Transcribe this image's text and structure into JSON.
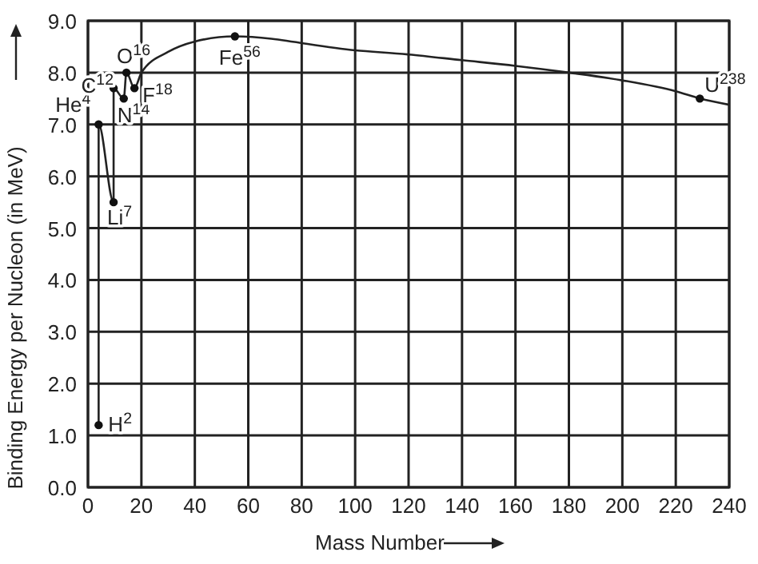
{
  "chart_data": {
    "type": "line",
    "xlabel": "Mass Number",
    "ylabel": "Binding Energy per Nucleon (in MeV)",
    "series": [
      {
        "color": "#222222",
        "marker": "none",
        "x": [
          4,
          4,
          9.6,
          9.6,
          13.4,
          14.4,
          17.4,
          20,
          30,
          40,
          55,
          100,
          120,
          140,
          160,
          180,
          200,
          220,
          229,
          240
        ],
        "values": [
          1.2,
          7.0,
          5.5,
          7.7,
          7.5,
          8.0,
          7.7,
          8.0,
          8.4,
          8.6,
          8.7,
          8.43,
          8.35,
          8.24,
          8.13,
          8.0,
          7.85,
          7.64,
          7.5,
          7.38
        ]
      },
      {
        "type": "scatter",
        "color": "#111111",
        "marker": "circle",
        "x": [
          4,
          4,
          9.6,
          9.6,
          13.4,
          14.4,
          17.4,
          55,
          229
        ],
        "values": [
          1.2,
          7.0,
          5.5,
          7.7,
          7.5,
          8.0,
          7.7,
          8.7,
          7.5
        ]
      }
    ],
    "annotations": [
      {
        "text": "H$^{2}$",
        "x": 4,
        "y": 1.2
      },
      {
        "text": "He$^{4}$",
        "x": 4,
        "y": 7.0
      },
      {
        "text": "Li$^{7}$",
        "x": 9.6,
        "y": 5.5
      },
      {
        "text": "C$^{12}$",
        "x": 9.6,
        "y": 7.7
      },
      {
        "text": "N$^{14}$",
        "x": 13.4,
        "y": 7.5
      },
      {
        "text": "O$^{16}$",
        "x": 14.4,
        "y": 8.0
      },
      {
        "text": "F$^{18}$",
        "x": 17.4,
        "y": 7.7
      },
      {
        "text": "Fe$^{56}$",
        "x": 55,
        "y": 8.7
      },
      {
        "text": "U$^{238}$",
        "x": 229,
        "y": 7.5
      }
    ],
    "xlim": [
      0,
      240
    ],
    "xticks": [
      0,
      20,
      40,
      60,
      80,
      100,
      120,
      140,
      160,
      180,
      200,
      220,
      240
    ],
    "ylim": [
      0,
      9
    ],
    "yticks": [
      {
        "value": 0,
        "label": "0.0"
      },
      {
        "value": 1,
        "label": "1.0"
      },
      {
        "value": 2,
        "label": "2.0"
      },
      {
        "value": 3,
        "label": "3.0"
      },
      {
        "value": 4,
        "label": "4.0"
      },
      {
        "value": 5,
        "label": "5.0"
      },
      {
        "value": 6,
        "label": "6.0"
      },
      {
        "value": 7,
        "label": "7.0"
      },
      {
        "value": 8,
        "label": "8.0"
      },
      {
        "value": 9,
        "label": "9.0"
      }
    ],
    "grid": true
  }
}
